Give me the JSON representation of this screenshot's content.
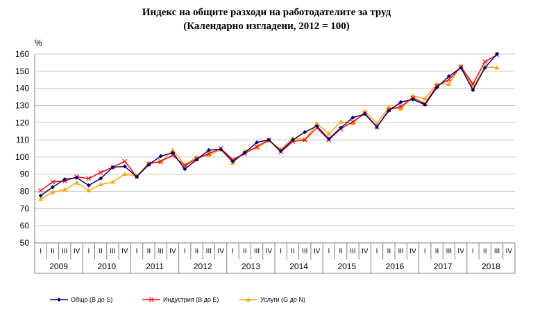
{
  "chart_data": {
    "type": "line",
    "title": "Индекс на общите разходи на работодателите за труд",
    "subtitle": "(Календарно изгладени, 2012 = 100)",
    "ylabel": "%",
    "ylim": [
      50,
      160
    ],
    "yticks": [
      50,
      60,
      70,
      80,
      90,
      100,
      110,
      120,
      130,
      140,
      150,
      160
    ],
    "grid": true,
    "legend_position": "bottom",
    "quarters": [
      "I",
      "II",
      "III",
      "IV"
    ],
    "years": [
      "2009",
      "2010",
      "2011",
      "2012",
      "2013",
      "2014",
      "2015",
      "2016",
      "2017",
      "2018"
    ],
    "series": [
      {
        "name": "Общо (B до S)",
        "color": "#000080",
        "marker": "diamond",
        "values": [
          77.5,
          82.5,
          87.0,
          88.0,
          83.5,
          87.5,
          94.0,
          94.5,
          88.5,
          95.5,
          100.5,
          102.5,
          93.0,
          98.5,
          104.0,
          104.5,
          97.5,
          102.5,
          108.5,
          110.0,
          103.5,
          110.0,
          114.5,
          118.0,
          110.5,
          117.0,
          123.0,
          125.0,
          117.5,
          127.0,
          132.0,
          133.5,
          130.5,
          140.5,
          147.0,
          152.0,
          139.0,
          152.0,
          160.0
        ]
      },
      {
        "name": "Индустрия (B до E)",
        "color": "#ff0000",
        "marker": "x",
        "values": [
          80.5,
          85.5,
          86.0,
          88.5,
          87.5,
          91.0,
          94.0,
          97.5,
          88.5,
          96.0,
          97.5,
          101.0,
          95.0,
          99.0,
          102.0,
          105.0,
          98.5,
          102.0,
          106.0,
          110.0,
          103.0,
          109.0,
          110.0,
          117.0,
          110.0,
          116.5,
          120.5,
          125.5,
          117.5,
          127.5,
          129.5,
          134.5,
          131.0,
          141.5,
          145.0,
          152.5,
          142.5,
          155.5,
          159.5
        ]
      },
      {
        "name": "Услуги (G до N)",
        "color": "#ffa500",
        "marker": "triangle",
        "values": [
          75.5,
          79.5,
          81.0,
          85.0,
          80.5,
          84.0,
          85.5,
          90.0,
          89.0,
          96.5,
          97.0,
          104.0,
          95.5,
          100.0,
          101.0,
          104.5,
          96.5,
          103.5,
          105.5,
          109.5,
          104.5,
          111.0,
          110.0,
          119.5,
          113.5,
          120.5,
          119.5,
          126.5,
          119.5,
          129.0,
          128.0,
          135.5,
          134.0,
          142.5,
          142.5,
          153.0,
          140.5,
          152.5,
          152.0
        ]
      }
    ]
  }
}
